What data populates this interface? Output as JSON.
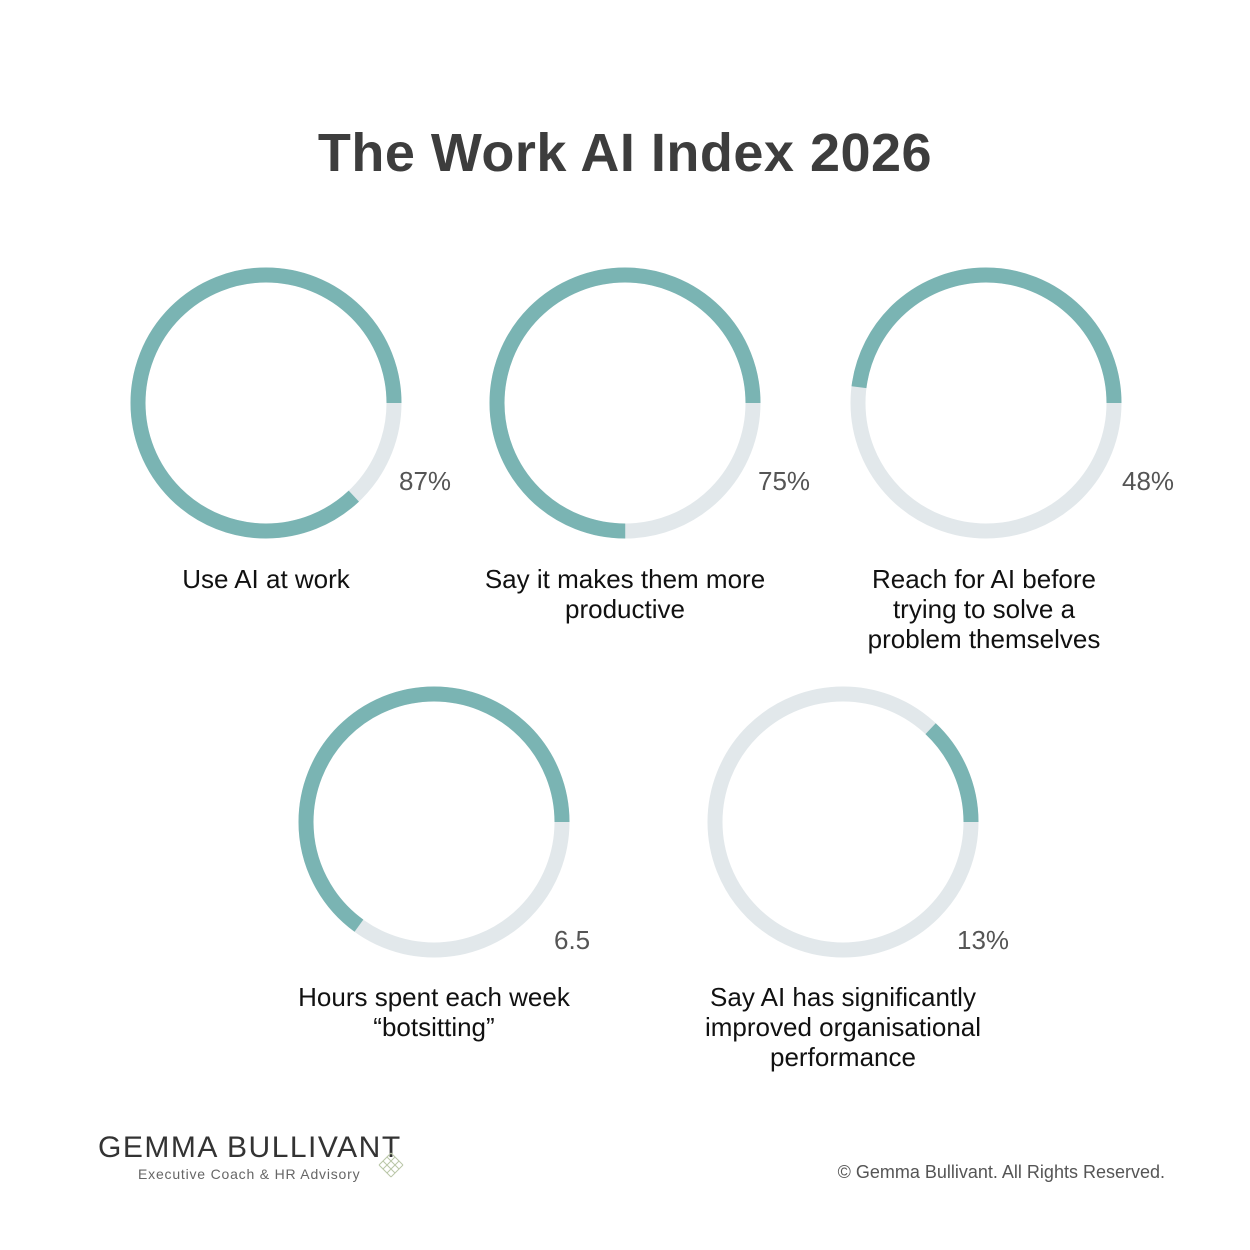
{
  "title": "The Work AI Index 2026",
  "colors": {
    "filled": "#7ab4b3",
    "track": "#e2e8eb",
    "title": "#3d3d3d"
  },
  "chart_data": {
    "type": "donut",
    "title": "The Work AI Index 2026",
    "items": [
      {
        "value_label": "87%",
        "fraction": 0.87,
        "label": "Use AI at work"
      },
      {
        "value_label": "75%",
        "fraction": 0.75,
        "label": "Say it makes them more productive"
      },
      {
        "value_label": "48%",
        "fraction": 0.48,
        "label": "Reach for AI before trying to solve a problem themselves"
      },
      {
        "value_label": "6.5",
        "fraction": 0.65,
        "label": "Hours spent each week “botsitting”"
      },
      {
        "value_label": "13%",
        "fraction": 0.13,
        "label": "Say AI has significantly improved organisational performance"
      }
    ]
  },
  "footer": {
    "brand_name": "GEMMA BULLIVANT",
    "brand_tagline": "Executive Coach & HR Advisory",
    "copyright": "© Gemma Bullivant. All Rights Reserved."
  }
}
